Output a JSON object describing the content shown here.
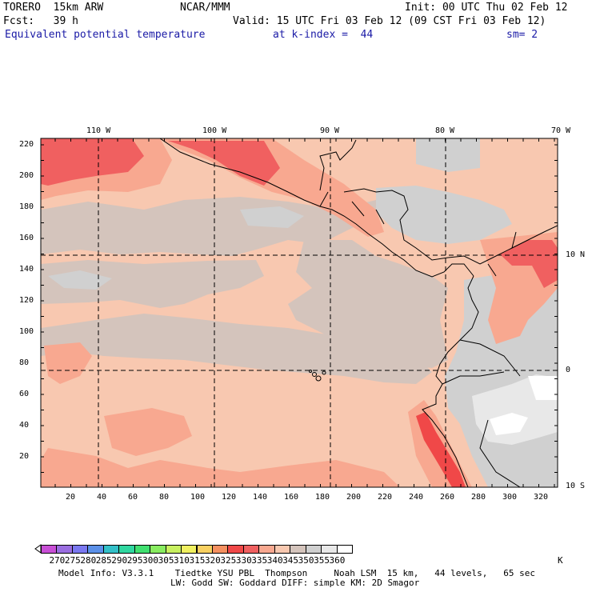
{
  "header": {
    "model": "TORERO  15km ARW",
    "center": "NCAR/MMM",
    "init": "Init: 00 UTC Thu 02 Feb 12",
    "fcst": "Fcst:   39 h",
    "valid": "Valid: 15 UTC Fri 03 Feb 12 (09 CST Fri 03 Feb 12)",
    "field": "Equivalent potential temperature",
    "level": "at k-index =  44",
    "smooth": "sm= 2"
  },
  "map": {
    "lon_labels": [
      "110 W",
      "100 W",
      "90 W",
      "80 W",
      "70 W"
    ],
    "lat_labels": [
      "10 N",
      "0",
      "10 S"
    ],
    "y_ticks": [
      "220",
      "200",
      "180",
      "160",
      "140",
      "120",
      "100",
      "80",
      "60",
      "40",
      "20"
    ],
    "x_ticks": [
      "20",
      "40",
      "60",
      "80",
      "100",
      "120",
      "140",
      "160",
      "180",
      "200",
      "220",
      "240",
      "260",
      "280",
      "300",
      "320"
    ]
  },
  "colorbar": {
    "values": [
      "270",
      "275",
      "280",
      "285",
      "290",
      "295",
      "300",
      "305",
      "310",
      "315",
      "320",
      "325",
      "330",
      "335",
      "340",
      "345",
      "350",
      "355",
      "360"
    ],
    "unit": "K",
    "colors": [
      "#c84fd6",
      "#9a6ee0",
      "#7a78f0",
      "#5b90e8",
      "#33c0c8",
      "#30d7a0",
      "#40e070",
      "#88ec60",
      "#c8f060",
      "#f0f060",
      "#f8d060",
      "#f59060",
      "#f04848",
      "#f06060",
      "#f8a890",
      "#f8c8b0",
      "#d4c4bc",
      "#d0d0d0",
      "#e8e8e8",
      "#ffffff"
    ]
  },
  "footer": {
    "line1": "Model Info: V3.3.1    Tiedtke YSU PBL  Thompson     Noah LSM  15 km,   44 levels,   65 sec",
    "line2": "LW: Godd SW: Goddard DIFF: simple KM: 2D Smagor"
  }
}
